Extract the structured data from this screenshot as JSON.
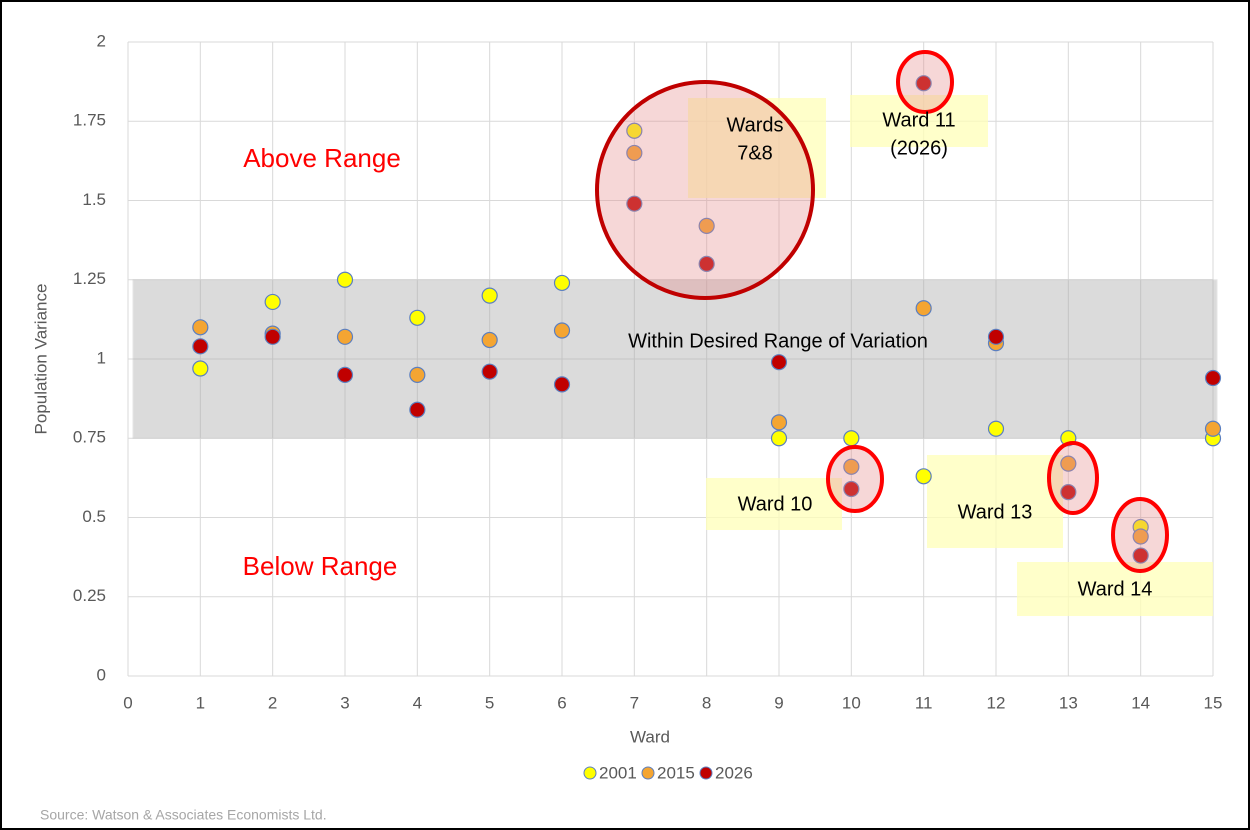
{
  "chart_data": {
    "type": "scatter",
    "xlabel": "Ward",
    "ylabel": "Population  Variance",
    "xlim": [
      0,
      15
    ],
    "xticks": [
      0,
      1,
      2,
      3,
      4,
      5,
      6,
      7,
      8,
      9,
      10,
      11,
      12,
      13,
      14,
      15
    ],
    "ylim": [
      0,
      2
    ],
    "yticks": [
      0,
      0.25,
      0.5,
      0.75,
      1,
      1.25,
      1.5,
      1.75,
      2
    ],
    "grid": true,
    "legend": "bottom",
    "range_band": [
      0.75,
      1.25
    ],
    "x": [
      1,
      2,
      3,
      4,
      5,
      6,
      7,
      8,
      9,
      10,
      11,
      12,
      13,
      14,
      15
    ],
    "series": [
      {
        "name": "2001",
        "color": "#ffff00",
        "values": [
          0.97,
          1.18,
          1.25,
          1.13,
          1.2,
          1.24,
          1.72,
          null,
          0.75,
          0.75,
          0.63,
          0.78,
          0.75,
          0.47,
          0.75
        ]
      },
      {
        "name": "2015",
        "color": "#f4a532",
        "values": [
          1.1,
          1.08,
          1.07,
          0.95,
          1.06,
          1.09,
          1.65,
          1.42,
          0.8,
          0.66,
          1.16,
          1.05,
          0.67,
          0.44,
          0.78
        ]
      },
      {
        "name": "2026",
        "color": "#c00000",
        "values": [
          1.04,
          1.07,
          0.95,
          0.84,
          0.96,
          0.92,
          1.49,
          1.3,
          0.99,
          0.59,
          1.87,
          1.07,
          0.58,
          0.38,
          0.94
        ]
      }
    ],
    "annotations": [
      {
        "lines": [
          "Above Range"
        ]
      },
      {
        "lines": [
          "Below Range"
        ]
      },
      {
        "lines": [
          "Within Desired Range of Variation"
        ]
      },
      {
        "lines": [
          "Wards",
          "7&8"
        ]
      },
      {
        "lines": [
          "Ward 11",
          "(2026)"
        ]
      },
      {
        "lines": [
          "Ward 10"
        ]
      },
      {
        "lines": [
          "Ward 13"
        ]
      },
      {
        "lines": [
          "Ward 14"
        ]
      }
    ],
    "source": "Source: Watson & Associates Economists Ltd."
  }
}
